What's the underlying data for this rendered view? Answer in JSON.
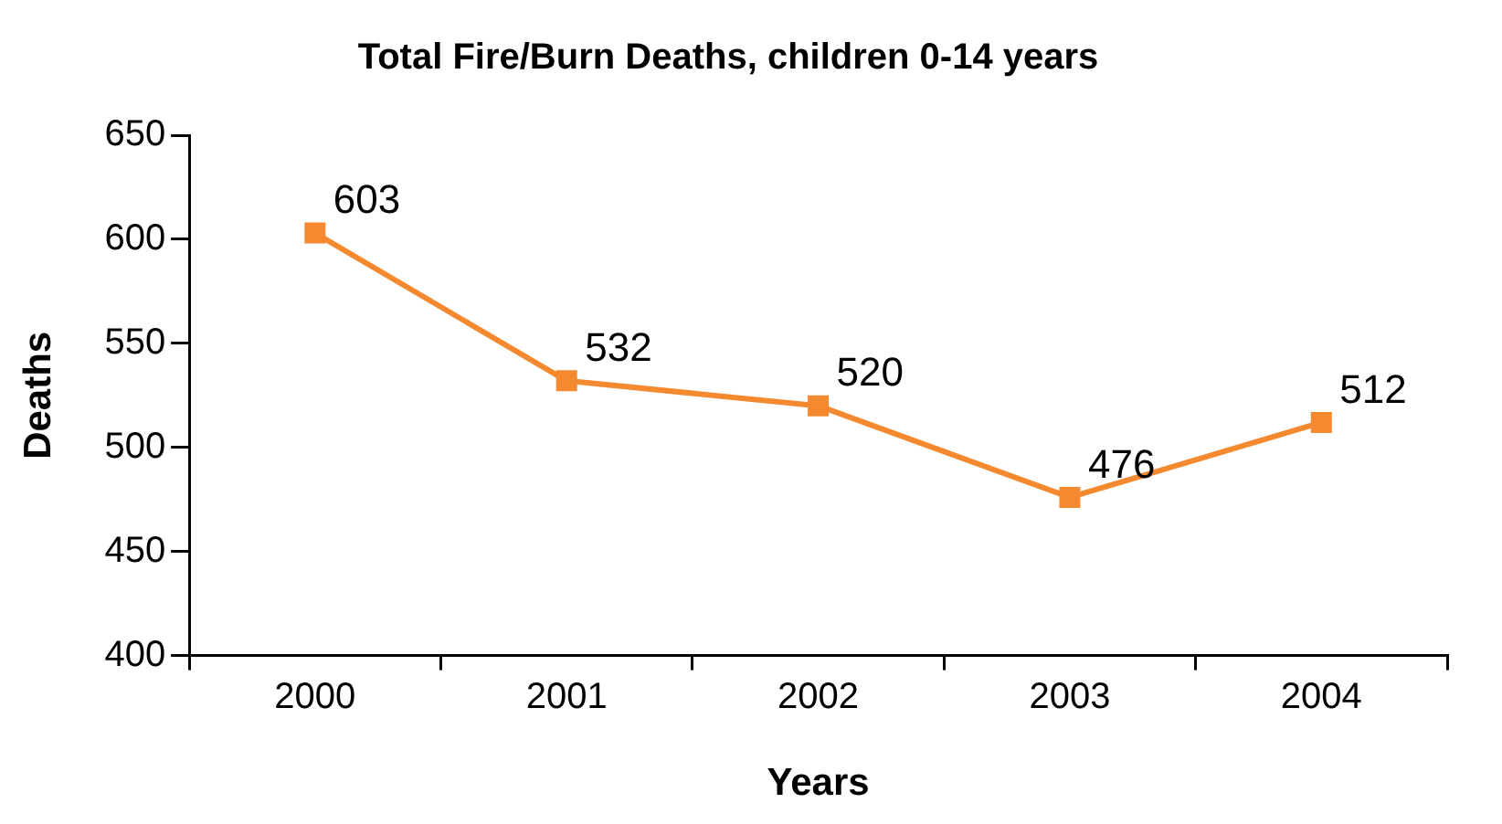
{
  "chart_data": {
    "type": "line",
    "title": "Total Fire/Burn Deaths, children 0-14 years",
    "xlabel": "Years",
    "ylabel": "Deaths",
    "categories": [
      "2000",
      "2001",
      "2002",
      "2003",
      "2004"
    ],
    "values": [
      603,
      532,
      520,
      476,
      512
    ],
    "color": "#f5892f",
    "ylim": [
      400,
      650
    ],
    "yticks": [
      400,
      450,
      500,
      550,
      600,
      650
    ],
    "marker": "square",
    "data_labels": true
  }
}
